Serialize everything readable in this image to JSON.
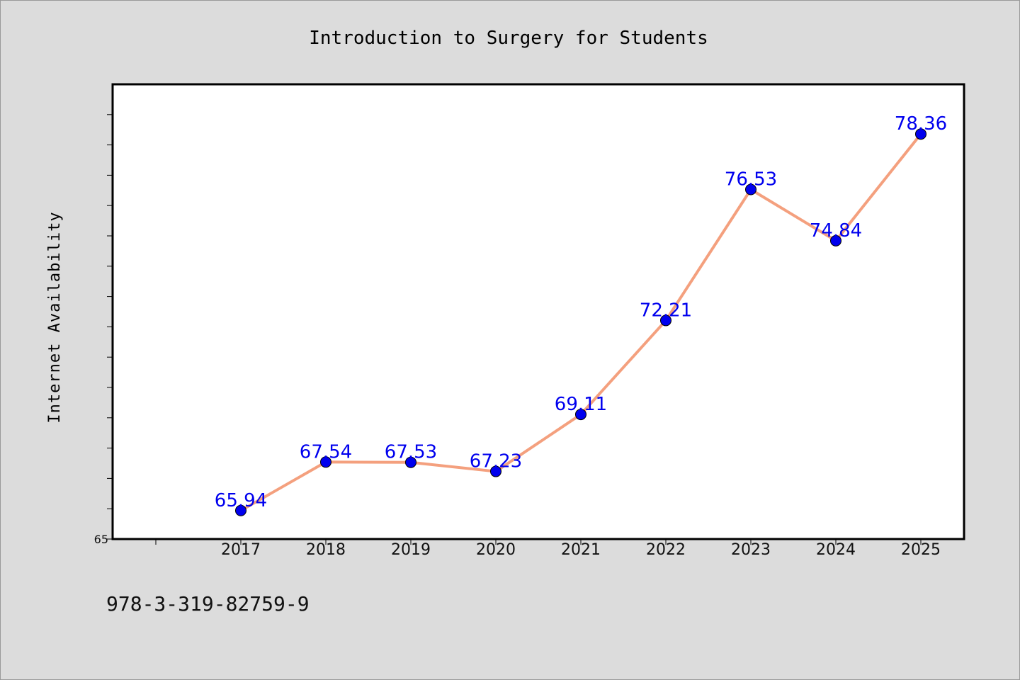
{
  "chart_data": {
    "type": "line",
    "title": "Introduction to Surgery for Students",
    "ylabel": "Internet Availability",
    "xlabel": "",
    "categories": [
      "2017",
      "2018",
      "2019",
      "2020",
      "2021",
      "2022",
      "2023",
      "2024",
      "2025"
    ],
    "series": [
      {
        "values": [
          65.94,
          67.54,
          67.53,
          67.23,
          69.11,
          72.21,
          76.53,
          74.84,
          78.36
        ],
        "labels": [
          "65.94",
          "67.54",
          "67.53",
          "67.23",
          "69.11",
          "72.21",
          "76.53",
          "74.84",
          "78.36"
        ]
      }
    ],
    "ylim": [
      65,
      80
    ],
    "ytick_labels": [
      "65"
    ],
    "grid": false,
    "legend": "none",
    "colors": {
      "line": "#f4a07e",
      "marker": "#0000ee",
      "marker_edge": "#000000",
      "data_label": "#0000ee",
      "background": "#dcdcdc",
      "plot_area": "#ffffff"
    }
  },
  "footer": {
    "isbn": "978-3-319-82759-9"
  }
}
